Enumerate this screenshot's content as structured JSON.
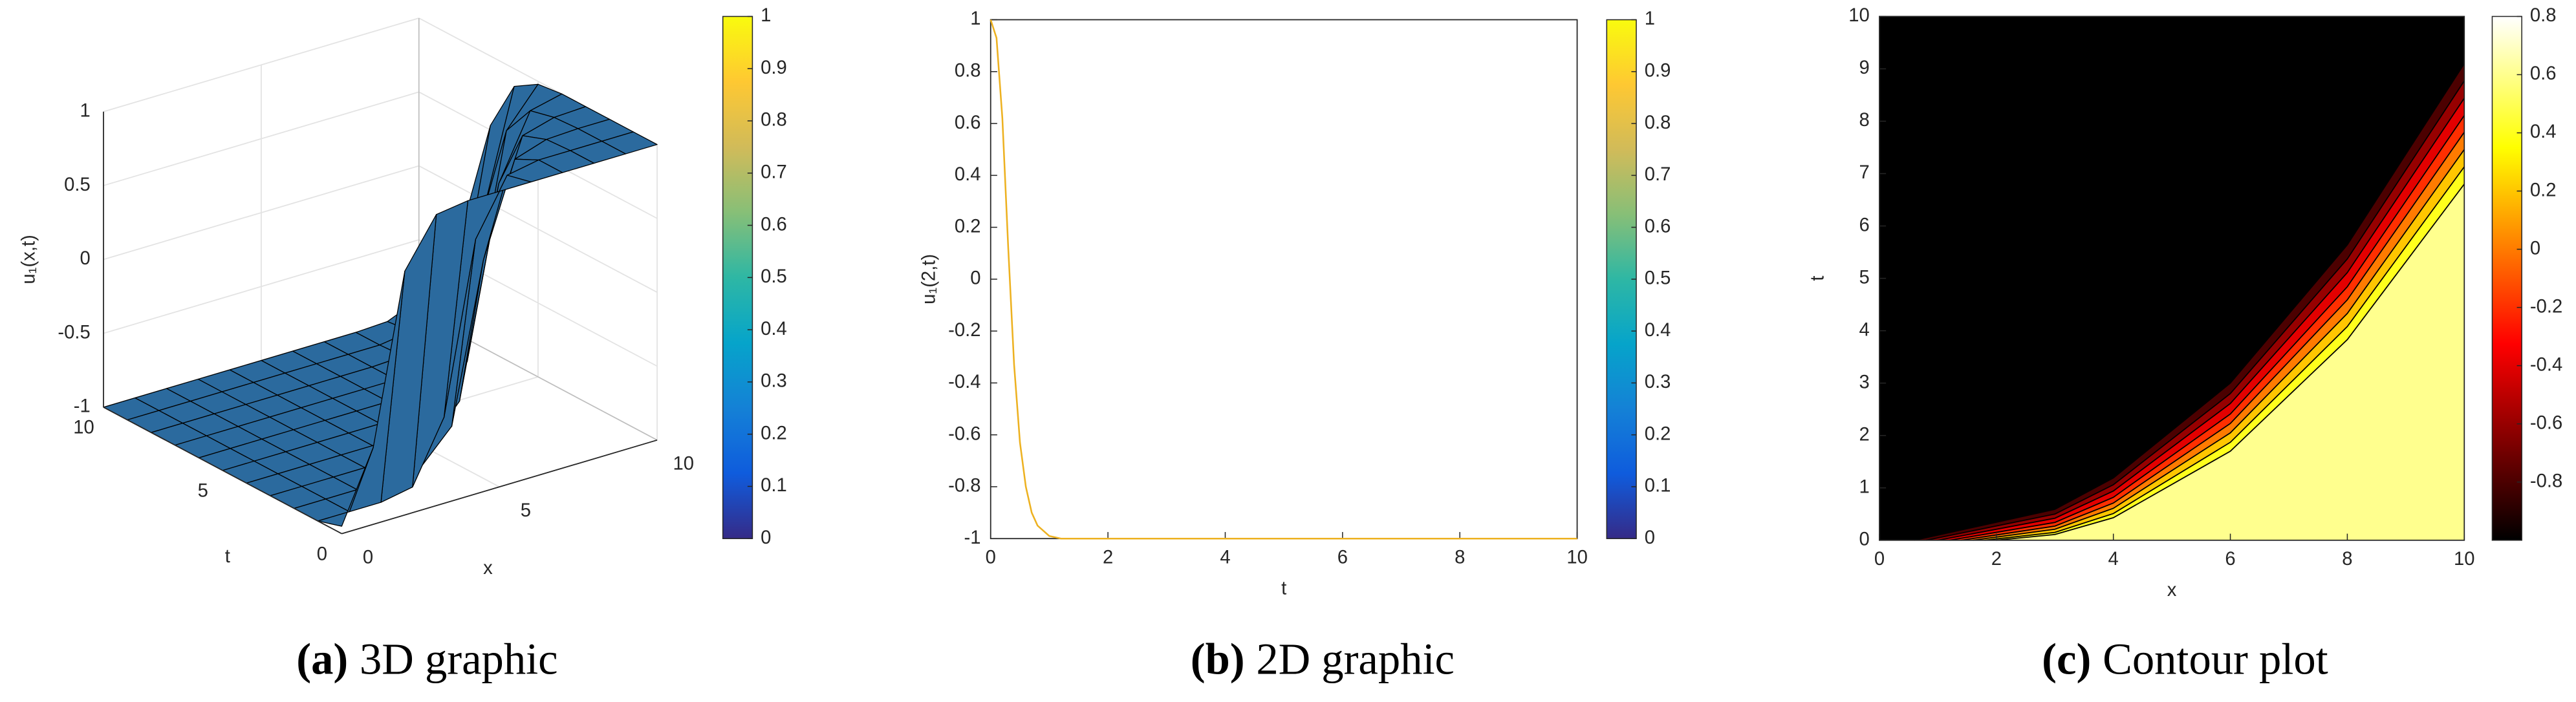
{
  "chart_data": [
    {
      "type": "surface3d",
      "caption_label": "(a)",
      "caption": "3D graphic",
      "xlabel": "x",
      "ylabel": "t",
      "zlabel": "u₁(x,t)",
      "x": [
        0,
        1,
        2,
        3,
        4,
        5,
        6,
        7,
        8,
        9,
        10
      ],
      "y": [
        0,
        1,
        2,
        3,
        4,
        5,
        6,
        7,
        8,
        9,
        10
      ],
      "z": [
        [
          -0.95,
          -0.48,
          0.65,
          0.97,
          1,
          1,
          1,
          1,
          1,
          1,
          1
        ],
        [
          -1,
          -1,
          -1,
          -0.96,
          -0.55,
          0.59,
          0.96,
          1,
          1,
          1,
          1
        ],
        [
          -1,
          -1,
          -1,
          -1,
          -0.98,
          -0.76,
          0.3,
          0.92,
          0.99,
          1,
          1
        ],
        [
          -1,
          -1,
          -1,
          -1,
          -1,
          -0.98,
          -0.74,
          0.34,
          0.93,
          0.99,
          1
        ],
        [
          -1,
          -1,
          -1,
          -1,
          -1,
          -1,
          -0.97,
          -0.62,
          0.52,
          0.95,
          1
        ],
        [
          -1,
          -1,
          -1,
          -1,
          -1,
          -1,
          -0.99,
          -0.93,
          -0.36,
          0.73,
          0.98
        ],
        [
          -1,
          -1,
          -1,
          -1,
          -1,
          -1,
          -1,
          -0.99,
          -0.84,
          0.08,
          0.88
        ],
        [
          -1,
          -1,
          -1,
          -1,
          -1,
          -1,
          -1,
          -1,
          -0.96,
          -0.61,
          0.53
        ],
        [
          -1,
          -1,
          -1,
          -1,
          -1,
          -1,
          -1,
          -1,
          -0.99,
          -0.89,
          -0.14
        ],
        [
          -1,
          -1,
          -1,
          -1,
          -1,
          -1,
          -1,
          -1,
          -1,
          -0.97,
          -0.68
        ],
        [
          -1,
          -1,
          -1,
          -1,
          -1,
          -1,
          -1,
          -1,
          -1,
          -0.99,
          -0.9
        ]
      ],
      "xlim": [
        0,
        10
      ],
      "ylim": [
        0,
        10
      ],
      "zlim": [
        -1,
        1
      ],
      "xticks": [
        0,
        5,
        10
      ],
      "yticks": [
        0,
        5,
        10
      ],
      "zticks": [
        -1,
        -0.5,
        0,
        0.5,
        1
      ],
      "color": "#2b6a9e",
      "edge_color": "#000000",
      "grid": true,
      "colormap": "parula",
      "clim": [
        0,
        1
      ],
      "cticks": [
        0,
        0.1,
        0.2,
        0.3,
        0.4,
        0.5,
        0.6,
        0.7,
        0.8,
        0.9,
        1
      ]
    },
    {
      "type": "line",
      "caption_label": "(b)",
      "caption": "2D graphic",
      "xlabel": "t",
      "ylabel": "u₁(2,t)",
      "x": [
        0,
        0.1,
        0.2,
        0.3,
        0.4,
        0.5,
        0.6,
        0.7,
        0.8,
        1,
        1.2,
        1.5,
        2,
        4,
        6,
        8,
        10
      ],
      "values": [
        1,
        0.93,
        0.62,
        0.12,
        -0.33,
        -0.63,
        -0.8,
        -0.9,
        -0.95,
        -0.99,
        -1,
        -1,
        -1,
        -1,
        -1,
        -1,
        -1
      ],
      "color": "#edb120",
      "xlim": [
        0,
        10
      ],
      "ylim": [
        -1,
        1
      ],
      "xticks": [
        0,
        2,
        4,
        6,
        8,
        10
      ],
      "yticks": [
        -1,
        -0.8,
        -0.6,
        -0.4,
        -0.2,
        0,
        0.2,
        0.4,
        0.6,
        0.8,
        1
      ],
      "colormap": "parula",
      "clim": [
        0,
        1
      ],
      "cticks": [
        0,
        0.1,
        0.2,
        0.3,
        0.4,
        0.5,
        0.6,
        0.7,
        0.8,
        0.9,
        1
      ]
    },
    {
      "type": "contour",
      "caption_label": "(c)",
      "caption": "Contour plot",
      "xlabel": "x",
      "ylabel": "t",
      "xlim": [
        0,
        10
      ],
      "ylim": [
        0,
        10
      ],
      "xticks": [
        0,
        2,
        4,
        6,
        8,
        10
      ],
      "yticks": [
        0,
        1,
        2,
        3,
        4,
        5,
        6,
        7,
        8,
        9,
        10
      ],
      "colormap": "hot",
      "clim": [
        -1,
        0.8
      ],
      "cticks": [
        -0.8,
        -0.6,
        -0.4,
        -0.2,
        0,
        0.2,
        0.4,
        0.6,
        0.8
      ],
      "contours": [
        {
          "level": -0.8,
          "x": [
            0.6,
            3,
            4,
            6,
            8,
            10
          ],
          "y": [
            0,
            0.59,
            1.19,
            3.0,
            5.64,
            9.1
          ]
        },
        {
          "level": -0.6,
          "x": [
            0.8,
            3,
            4,
            6,
            8,
            10
          ],
          "y": [
            0,
            0.5,
            1.06,
            2.8,
            5.37,
            8.77
          ]
        },
        {
          "level": -0.4,
          "x": [
            1.0,
            3,
            4,
            6,
            8,
            10
          ],
          "y": [
            0,
            0.42,
            0.94,
            2.61,
            5.11,
            8.44
          ]
        },
        {
          "level": -0.2,
          "x": [
            1.2,
            3,
            4,
            6,
            8,
            10
          ],
          "y": [
            0,
            0.34,
            0.82,
            2.41,
            4.84,
            8.11
          ]
        },
        {
          "level": 0,
          "x": [
            1.4,
            3,
            4,
            6,
            8,
            10
          ],
          "y": [
            0,
            0.27,
            0.71,
            2.23,
            4.59,
            7.79
          ]
        },
        {
          "level": 0.2,
          "x": [
            1.6,
            3,
            4,
            6,
            8,
            10
          ],
          "y": [
            0,
            0.21,
            0.61,
            2.05,
            4.33,
            7.46
          ]
        },
        {
          "level": 0.4,
          "x": [
            1.8,
            3,
            4,
            6,
            8,
            10
          ],
          "y": [
            0,
            0.15,
            0.51,
            1.87,
            4.08,
            7.13
          ]
        },
        {
          "level": 0.6,
          "x": [
            2.0,
            3,
            4,
            6,
            8,
            10
          ],
          "y": [
            0,
            0.11,
            0.43,
            1.7,
            3.83,
            6.8
          ]
        }
      ]
    }
  ]
}
